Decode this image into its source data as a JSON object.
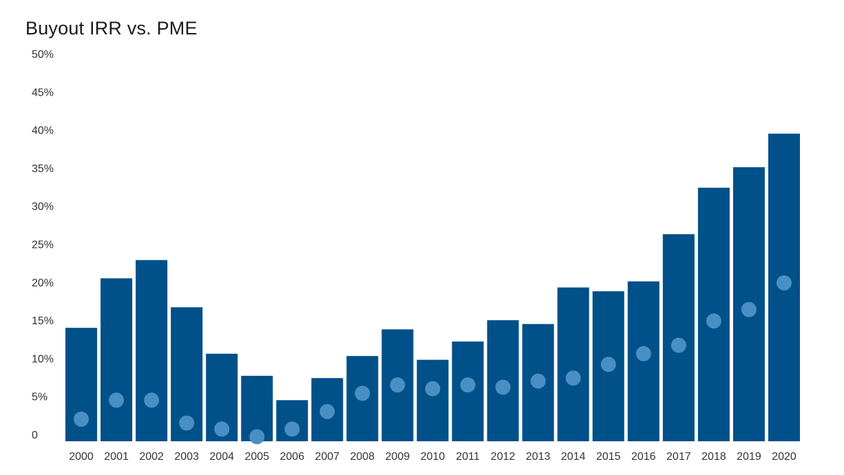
{
  "chart_data": {
    "type": "bar",
    "title": "Buyout IRR vs. PME",
    "categories": [
      "2000",
      "2001",
      "2002",
      "2003",
      "2004",
      "2005",
      "2006",
      "2007",
      "2008",
      "2009",
      "2010",
      "2011",
      "2012",
      "2013",
      "2014",
      "2015",
      "2016",
      "2017",
      "2018",
      "2019",
      "2020"
    ],
    "series": [
      {
        "kind": "bar",
        "values": [
          14.9,
          21.4,
          23.8,
          17.6,
          11.5,
          8.6,
          5.4,
          8.3,
          11.2,
          14.7,
          10.7,
          13.1,
          15.9,
          15.4,
          20.2,
          19.7,
          21.0,
          27.2,
          33.3,
          36.0,
          40.4
        ]
      },
      {
        "kind": "dot",
        "values": [
          2.9,
          5.4,
          5.4,
          2.4,
          1.6,
          0.6,
          1.6,
          3.9,
          6.3,
          7.4,
          6.9,
          7.4,
          7.1,
          7.9,
          8.3,
          10.1,
          11.5,
          12.6,
          15.8,
          17.3,
          20.8
        ]
      }
    ],
    "y_ticks": [
      "0",
      "5%",
      "10%",
      "15%",
      "20%",
      "25%",
      "30%",
      "35%",
      "40%",
      "45%",
      "50%"
    ],
    "ylim": [
      0,
      50
    ],
    "grid": false,
    "colors": {
      "bar": "#005089",
      "dot": "#4a8fc4"
    }
  }
}
